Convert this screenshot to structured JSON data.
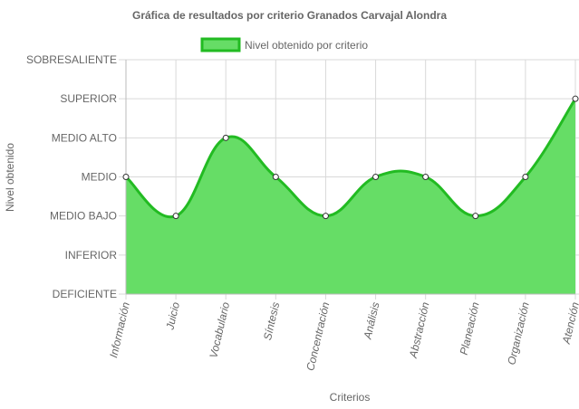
{
  "chart_data": {
    "type": "area",
    "title": "Gráfica de resultados por criterio Granados Carvajal Alondra",
    "xlabel": "Criterios",
    "ylabel": "Nivel obtenido",
    "y_categories": [
      "DEFICIENTE",
      "INFERIOR",
      "MEDIO BAJO",
      "MEDIO",
      "MEDIO ALTO",
      "SUPERIOR",
      "SOBRESALIENTE"
    ],
    "ylim": [
      0,
      6
    ],
    "categories": [
      "Información",
      "Juicio",
      "Vocabulario",
      "Síntesis",
      "Concentración",
      "Análisis",
      "Abstracción",
      "Planeación",
      "Organización",
      "Atención"
    ],
    "series": [
      {
        "name": "Nivel obtenido por criterio",
        "values": [
          3,
          2,
          4,
          3,
          2,
          3,
          3,
          2,
          3,
          5
        ]
      }
    ],
    "grid": true,
    "legend_position": "top",
    "colors": {
      "fill": "#66dd66",
      "line": "#22bb22",
      "point_fill": "#ffffff",
      "point_stroke": "#333333",
      "grid": "#d9d9d9",
      "text": "#666666"
    }
  }
}
